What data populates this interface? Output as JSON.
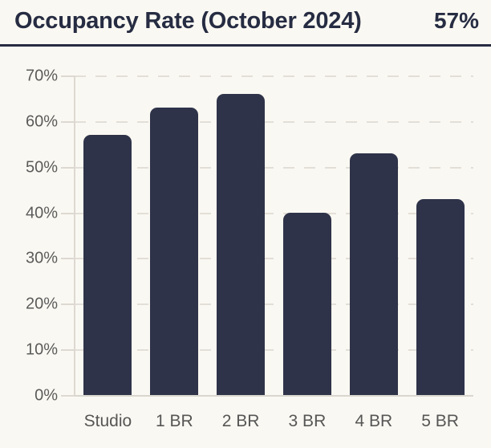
{
  "header": {
    "title": "Occupancy Rate (October 2024)",
    "value": "57%"
  },
  "chart_data": {
    "type": "bar",
    "title": "Occupancy Rate (October 2024)",
    "headline_value": "57%",
    "categories": [
      "Studio",
      "1 BR",
      "2 BR",
      "3 BR",
      "4 BR",
      "5 BR"
    ],
    "values": [
      57,
      63,
      66,
      40,
      53,
      43
    ],
    "xlabel": "",
    "ylabel": "",
    "ylim": [
      0,
      70
    ],
    "ytick_step": 10,
    "ytick_suffix": "%",
    "yticks": [
      "0%",
      "10%",
      "20%",
      "30%",
      "40%",
      "50%",
      "60%",
      "70%"
    ],
    "grid": "dashed horizontal gridlines every 10%, solid baseline at 0%",
    "legend": "none",
    "bar_color": "#2E3349",
    "background_color": "#FAF8F2",
    "title_color": "#262C42",
    "axis_label_color": "#5B5B5B",
    "gridline_color": "#E2DFD8"
  }
}
